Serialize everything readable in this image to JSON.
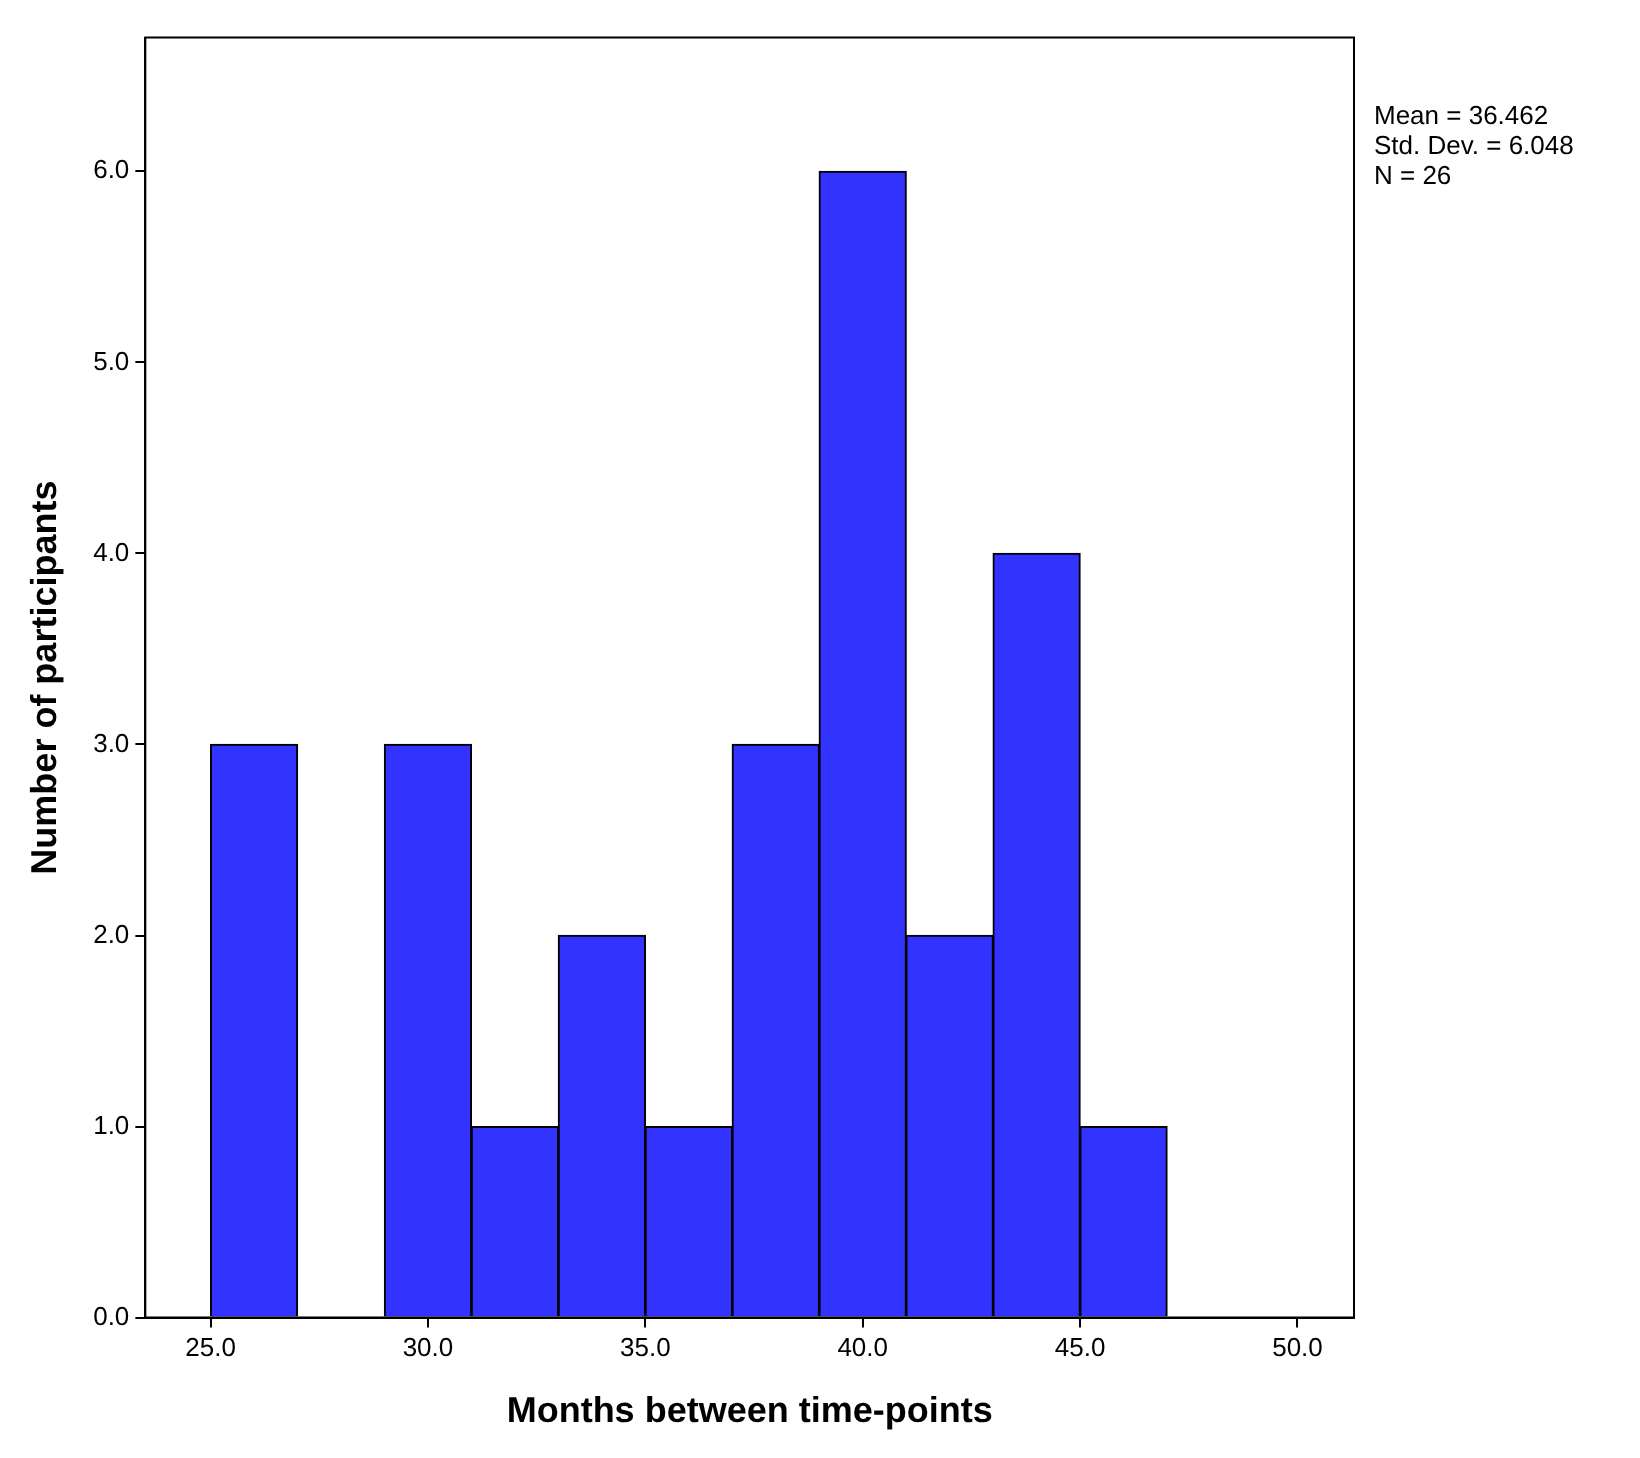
{
  "chart_data": {
    "type": "histogram",
    "xlabel": "Months between time-points",
    "ylabel": "Number of participants",
    "bins": [
      25,
      27,
      29,
      31,
      33,
      35,
      37,
      39,
      41,
      43,
      45,
      47
    ],
    "values": [
      3,
      0,
      3,
      1,
      2,
      1,
      3,
      6,
      2,
      4,
      1
    ],
    "color": "#3333ff",
    "xlim": [
      23.5,
      51.3
    ],
    "xticks": [
      {
        "value": 25,
        "label": "25.0"
      },
      {
        "value": 30,
        "label": "30.0"
      },
      {
        "value": 35,
        "label": "35.0"
      },
      {
        "value": 40,
        "label": "40.0"
      },
      {
        "value": 45,
        "label": "45.0"
      },
      {
        "value": 50,
        "label": "50.0"
      }
    ],
    "ylim": [
      0,
      6.7
    ],
    "yticks": [
      {
        "value": 0,
        "label": "0.0"
      },
      {
        "value": 1,
        "label": "1.0"
      },
      {
        "value": 2,
        "label": "2.0"
      },
      {
        "value": 3,
        "label": "3.0"
      },
      {
        "value": 4,
        "label": "4.0"
      },
      {
        "value": 5,
        "label": "5.0"
      },
      {
        "value": 6,
        "label": "6.0"
      }
    ],
    "annotations": [
      "Mean = 36.462",
      "Std. Dev. = 6.048",
      "N = 26"
    ]
  }
}
